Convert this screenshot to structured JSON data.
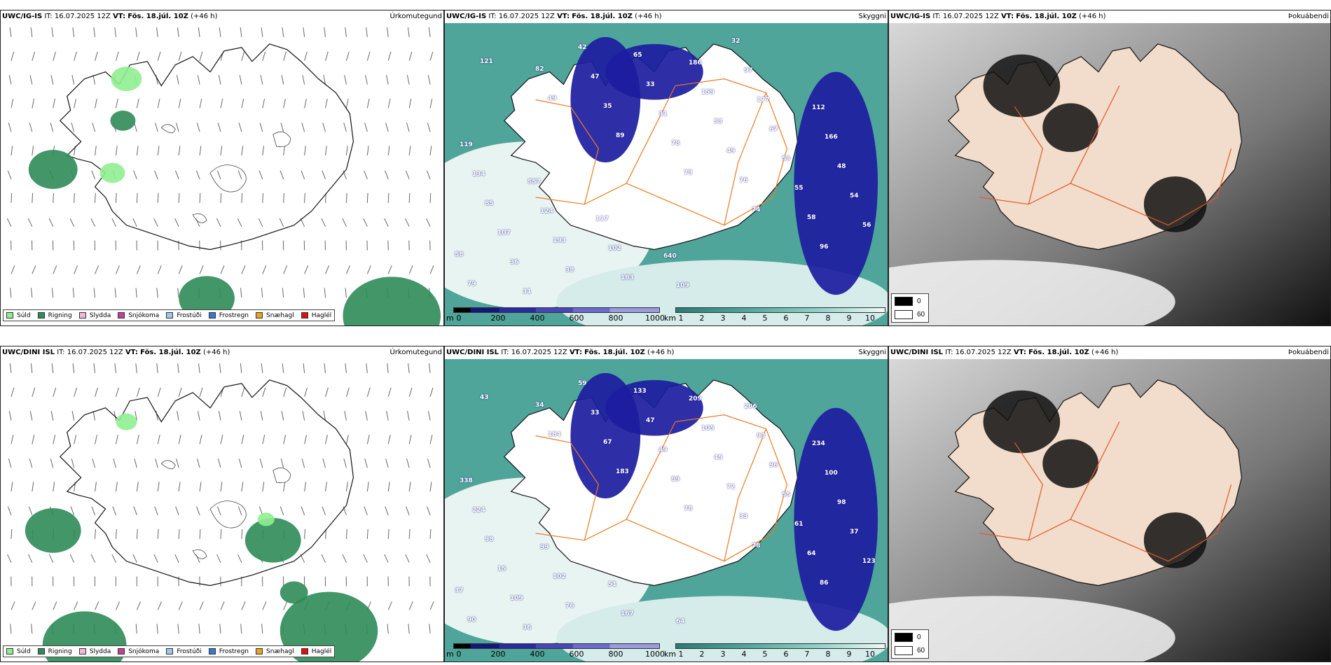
{
  "panels": [
    {
      "model": "UWC/IG-IS",
      "it_label": "IT:",
      "it_value": "16.07.2025 12Z",
      "vt_label": "VT:",
      "vt_value": "Fös. 18.júl. 10Z",
      "lead": "(+46 h)",
      "kind": "precip",
      "tag": "Úrkomutegund"
    },
    {
      "model": "UWC/IG-IS",
      "it_label": "IT:",
      "it_value": "16.07.2025 12Z",
      "vt_label": "VT:",
      "vt_value": "Fös. 18.júl. 10Z",
      "lead": "(+46 h)",
      "kind": "visibility",
      "tag": "Skyggni",
      "labels": [
        "121",
        "49",
        "89",
        "79",
        "74",
        "96",
        "79",
        "82",
        "35",
        "78",
        "76",
        "58",
        "58",
        "31",
        "47",
        "31",
        "49",
        "55",
        "56",
        "36",
        "42",
        "33",
        "53",
        "53",
        "54",
        "107",
        "38",
        "65",
        "159",
        "67",
        "48",
        "85",
        "193",
        "183",
        "186",
        "177",
        "166",
        "134",
        "124",
        "102",
        "109",
        "97",
        "112",
        "119",
        "557",
        "117",
        "640",
        "32"
      ]
    },
    {
      "model": "UWC/IG-IS",
      "it_label": "IT:",
      "it_value": "16.07.2025 12Z",
      "vt_label": "VT:",
      "vt_value": "Fös. 18.júl. 10Z",
      "lead": "(+46 h)",
      "kind": "cloud",
      "tag": "Þokuábendi"
    },
    {
      "model": "UWC/DINI ISL",
      "it_label": "IT:",
      "it_value": "16.07.2025 12Z",
      "vt_label": "VT:",
      "vt_value": "Fös. 18.júl. 10Z",
      "lead": "(+46 h)",
      "kind": "precip",
      "tag": "Úrkomutegund"
    },
    {
      "model": "UWC/DINI ISL",
      "it_label": "IT:",
      "it_value": "16.07.2025 12Z",
      "vt_label": "VT:",
      "vt_value": "Fös. 18.júl. 10Z",
      "lead": "(+46 h)",
      "kind": "visibility",
      "tag": "Skyggni",
      "labels": [
        "43",
        "184",
        "183",
        "78",
        "78",
        "86",
        "90",
        "34",
        "67",
        "89",
        "33",
        "64",
        "37",
        "36",
        "33",
        "49",
        "72",
        "61",
        "123",
        "109",
        "59",
        "47",
        "45",
        "55",
        "37",
        "15",
        "76",
        "133",
        "105",
        "96",
        "98",
        "98",
        "102",
        "167",
        "209",
        "93",
        "100",
        "224",
        "99",
        "51",
        "64",
        "206",
        "234",
        "338"
      ]
    },
    {
      "model": "UWC/DINI ISL",
      "it_label": "IT:",
      "it_value": "16.07.2025 12Z",
      "vt_label": "VT:",
      "vt_value": "Fös. 18.júl. 10Z",
      "lead": "(+46 h)",
      "kind": "cloud",
      "tag": "Þokuábendi"
    }
  ],
  "precip_legend": [
    {
      "label": "Súld",
      "color": "#90ee90"
    },
    {
      "label": "Rigning",
      "color": "#2e8b57"
    },
    {
      "label": "Slydda",
      "color": "#f4b6d8"
    },
    {
      "label": "Snjókoma",
      "color": "#c0409a"
    },
    {
      "label": "Frostúði",
      "color": "#9ec7f0"
    },
    {
      "label": "Frostregn",
      "color": "#3a78c8"
    },
    {
      "label": "Snæhagl",
      "color": "#f0a020"
    },
    {
      "label": "Haglél",
      "color": "#e01010"
    }
  ],
  "vis_cbar_m": {
    "unit": "m",
    "ticks": [
      "0",
      "200",
      "400",
      "600",
      "800",
      "1000"
    ]
  },
  "vis_cbar_km": {
    "unit": "km",
    "ticks": [
      "1",
      "2",
      "3",
      "4",
      "5",
      "6",
      "7",
      "8",
      "9",
      "10"
    ]
  },
  "cloud_legend": [
    {
      "label": "0",
      "color": "#000000"
    },
    {
      "label": "60",
      "color": "#ffffff"
    }
  ]
}
